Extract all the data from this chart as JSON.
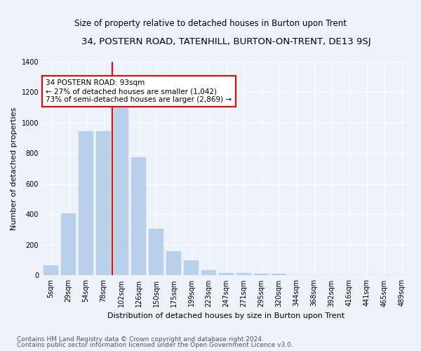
{
  "title": "34, POSTERN ROAD, TATENHILL, BURTON-ON-TRENT, DE13 9SJ",
  "subtitle": "Size of property relative to detached houses in Burton upon Trent",
  "xlabel": "Distribution of detached houses by size in Burton upon Trent",
  "ylabel": "Number of detached properties",
  "footer1": "Contains HM Land Registry data © Crown copyright and database right 2024.",
  "footer2": "Contains public sector information licensed under the Open Government Licence v3.0.",
  "categories": [
    "5sqm",
    "29sqm",
    "54sqm",
    "78sqm",
    "102sqm",
    "126sqm",
    "150sqm",
    "175sqm",
    "199sqm",
    "223sqm",
    "247sqm",
    "271sqm",
    "295sqm",
    "320sqm",
    "344sqm",
    "368sqm",
    "392sqm",
    "416sqm",
    "441sqm",
    "465sqm",
    "489sqm"
  ],
  "values": [
    65,
    405,
    945,
    945,
    1105,
    775,
    305,
    160,
    97,
    35,
    15,
    15,
    10,
    9,
    0,
    0,
    0,
    0,
    0,
    0,
    0
  ],
  "bar_color": "#b8d0ea",
  "bar_edge_color": "#b8d0ea",
  "vline_color": "red",
  "vline_x_index": 3.5,
  "annotation_text": "34 POSTERN ROAD: 93sqm\n← 27% of detached houses are smaller (1,042)\n73% of semi-detached houses are larger (2,869) →",
  "annotation_box_color": "white",
  "annotation_box_edgecolor": "red",
  "ylim": [
    0,
    1400
  ],
  "background_color": "#eef2fb",
  "plot_bg_color": "#eef2fb",
  "grid_color": "white",
  "title_fontsize": 9.5,
  "subtitle_fontsize": 8.5,
  "ylabel_fontsize": 8,
  "xlabel_fontsize": 8,
  "tick_fontsize": 7,
  "footer_fontsize": 6.5
}
